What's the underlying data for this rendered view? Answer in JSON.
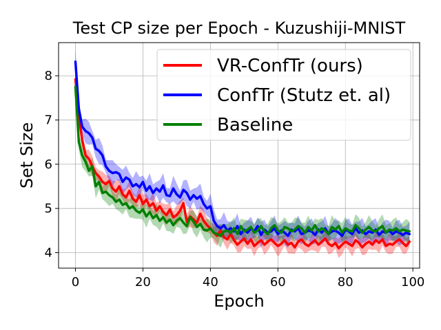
{
  "chart_data": {
    "type": "line",
    "title": "Test CP size per Epoch - Kuzushiji-MNIST",
    "xlabel": "Epoch",
    "ylabel": "Set Size",
    "xlim": [
      -5,
      102
    ],
    "ylim": [
      3.65,
      8.75
    ],
    "xticks": [
      0,
      20,
      40,
      60,
      80,
      100
    ],
    "yticks": [
      4,
      5,
      6,
      7,
      8
    ],
    "grid": true,
    "legend_position": "upper-right",
    "x": [
      0,
      1,
      2,
      3,
      4,
      5,
      6,
      7,
      8,
      9,
      10,
      11,
      12,
      13,
      14,
      15,
      16,
      17,
      18,
      19,
      20,
      21,
      22,
      23,
      24,
      25,
      26,
      27,
      28,
      29,
      30,
      31,
      32,
      33,
      34,
      35,
      36,
      37,
      38,
      39,
      40,
      41,
      42,
      43,
      44,
      45,
      46,
      47,
      48,
      49,
      50,
      51,
      52,
      53,
      54,
      55,
      56,
      57,
      58,
      59,
      60,
      61,
      62,
      63,
      64,
      65,
      66,
      67,
      68,
      69,
      70,
      71,
      72,
      73,
      74,
      75,
      76,
      77,
      78,
      79,
      80,
      81,
      82,
      83,
      84,
      85,
      86,
      87,
      88,
      89,
      90,
      91,
      92,
      93,
      94,
      95,
      96,
      97,
      98,
      99
    ],
    "series": [
      {
        "name": "VR-ConfTr (ours)",
        "color": "#ff0000",
        "band": 0.18,
        "values": [
          7.92,
          7.1,
          6.55,
          6.2,
          6.12,
          5.95,
          5.8,
          5.72,
          5.6,
          5.55,
          5.62,
          5.45,
          5.38,
          5.5,
          5.32,
          5.25,
          5.4,
          5.22,
          5.15,
          5.3,
          5.1,
          5.2,
          5.05,
          5.12,
          4.95,
          5.05,
          4.92,
          4.85,
          4.98,
          4.8,
          4.85,
          4.95,
          5.12,
          4.7,
          4.82,
          4.75,
          4.68,
          4.88,
          4.72,
          4.62,
          4.55,
          4.45,
          4.38,
          4.5,
          4.35,
          4.3,
          4.42,
          4.28,
          4.18,
          4.25,
          4.32,
          4.2,
          4.3,
          4.15,
          4.22,
          4.28,
          4.18,
          4.25,
          4.3,
          4.22,
          4.15,
          4.2,
          4.28,
          4.18,
          4.22,
          4.12,
          4.25,
          4.3,
          4.2,
          4.15,
          4.22,
          4.28,
          4.18,
          4.25,
          4.32,
          4.2,
          4.15,
          4.22,
          4.1,
          4.18,
          4.25,
          4.2,
          4.15,
          4.28,
          4.22,
          4.12,
          4.2,
          4.25,
          4.18,
          4.28,
          4.22,
          4.3,
          4.15,
          4.2,
          4.18,
          4.25,
          4.3,
          4.22,
          4.15,
          4.25
        ]
      },
      {
        "name": "ConfTr (Stutz et. al)",
        "color": "#0000ff",
        "band": 0.22,
        "values": [
          8.32,
          7.25,
          6.85,
          6.75,
          6.7,
          6.6,
          6.35,
          6.3,
          6.2,
          5.95,
          5.85,
          5.8,
          5.82,
          5.78,
          5.6,
          5.7,
          5.65,
          5.5,
          5.55,
          5.48,
          5.6,
          5.4,
          5.5,
          5.35,
          5.45,
          5.38,
          5.52,
          5.3,
          5.28,
          5.45,
          5.32,
          5.25,
          5.42,
          5.35,
          5.2,
          5.3,
          5.22,
          5.28,
          5.1,
          5.0,
          5.05,
          4.72,
          4.6,
          4.55,
          4.62,
          4.5,
          4.55,
          4.48,
          4.6,
          4.42,
          4.52,
          4.45,
          4.55,
          4.48,
          4.6,
          4.4,
          4.52,
          4.45,
          4.48,
          4.55,
          4.42,
          4.5,
          4.45,
          4.38,
          4.52,
          4.48,
          4.55,
          4.42,
          4.45,
          4.5,
          4.48,
          4.4,
          4.52,
          4.45,
          4.55,
          4.42,
          4.48,
          4.5,
          4.45,
          4.38,
          4.52,
          4.48,
          4.42,
          4.55,
          4.45,
          4.5,
          4.42,
          4.48,
          4.45,
          4.52,
          4.4,
          4.48,
          4.45,
          4.5,
          4.42,
          4.48,
          4.45,
          4.4,
          4.45,
          4.42
        ]
      },
      {
        "name": "Baseline",
        "color": "#008000",
        "band": 0.2,
        "values": [
          7.75,
          6.5,
          6.2,
          6.05,
          5.85,
          5.95,
          5.5,
          5.6,
          5.35,
          5.38,
          5.3,
          5.25,
          5.15,
          5.2,
          5.08,
          5.12,
          5.0,
          5.05,
          4.95,
          4.9,
          4.98,
          4.82,
          4.92,
          4.78,
          4.85,
          4.72,
          4.8,
          4.68,
          4.75,
          4.62,
          4.72,
          4.78,
          4.68,
          4.6,
          4.8,
          4.7,
          4.58,
          4.65,
          4.52,
          4.5,
          4.55,
          4.45,
          4.42,
          4.38,
          4.48,
          4.5,
          4.45,
          4.55,
          4.42,
          4.6,
          4.48,
          4.52,
          4.58,
          4.45,
          4.5,
          4.6,
          4.48,
          4.42,
          4.55,
          4.62,
          4.5,
          4.45,
          4.58,
          4.55,
          4.48,
          4.52,
          4.6,
          4.55,
          4.45,
          4.58,
          4.5,
          4.62,
          4.48,
          4.55,
          4.5,
          4.42,
          4.58,
          4.52,
          4.6,
          4.45,
          4.55,
          4.5,
          4.48,
          4.62,
          4.55,
          4.45,
          4.52,
          4.58,
          4.5,
          4.48,
          4.55,
          4.6,
          4.45,
          4.52,
          4.5,
          4.55,
          4.48,
          4.52,
          4.5,
          4.48
        ]
      }
    ]
  }
}
